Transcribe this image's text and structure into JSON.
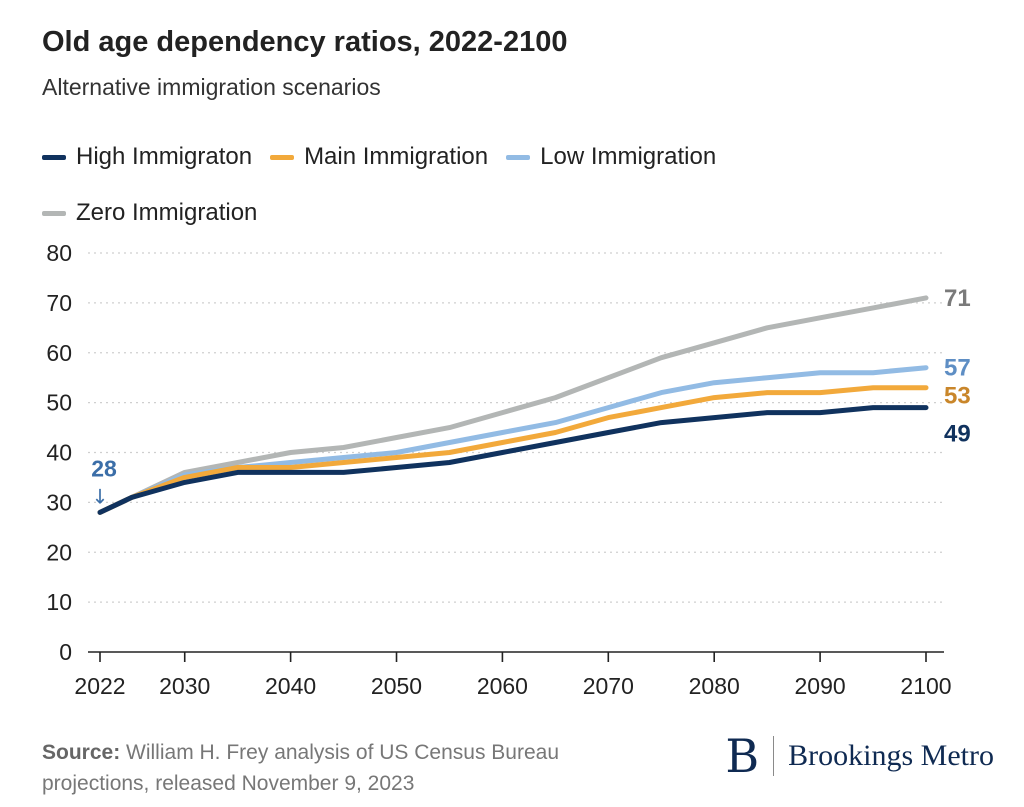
{
  "header": {
    "title": "Old age dependency ratios, 2022-2100",
    "subtitle": "Alternative immigration scenarios"
  },
  "chart_data": {
    "type": "line",
    "title": "Old age dependency ratios, 2022-2100",
    "subtitle": "Alternative immigration scenarios",
    "xlabel": "",
    "ylabel": "",
    "x": [
      2022,
      2025,
      2030,
      2035,
      2040,
      2045,
      2050,
      2055,
      2060,
      2065,
      2070,
      2075,
      2080,
      2085,
      2090,
      2095,
      2100
    ],
    "xlim": [
      2022,
      2100
    ],
    "ylim": [
      0,
      80
    ],
    "x_ticks": [
      "2022",
      "2030",
      "2040",
      "2050",
      "2060",
      "2070",
      "2080",
      "2090",
      "2100"
    ],
    "x_tick_values": [
      2022,
      2030,
      2040,
      2050,
      2060,
      2070,
      2080,
      2090,
      2100
    ],
    "y_ticks": [
      0,
      10,
      20,
      30,
      40,
      50,
      60,
      70,
      80
    ],
    "grid": "horizontal dotted",
    "legend_position": "top-left",
    "series": [
      {
        "name": "Zero Immigration",
        "color": "#b3b6b5",
        "values": [
          28,
          31,
          36,
          38,
          40,
          41,
          43,
          45,
          48,
          51,
          55,
          59,
          62,
          65,
          67,
          69,
          71
        ],
        "end_label": "71",
        "label_color": "#7a7a7a"
      },
      {
        "name": "Low Immigration",
        "color": "#92bbe4",
        "values": [
          28,
          31,
          35.5,
          37,
          38,
          39,
          40,
          42,
          44,
          46,
          49,
          52,
          54,
          55,
          56,
          56,
          57
        ],
        "end_label": "57",
        "label_color": "#5e8ec4"
      },
      {
        "name": "Main Immigration",
        "color": "#f2a93b",
        "values": [
          28,
          31,
          35,
          37,
          37,
          38,
          39,
          40,
          42,
          44,
          47,
          49,
          51,
          52,
          52,
          53,
          53
        ],
        "end_label": "53",
        "label_color": "#c9862a"
      },
      {
        "name": "High Immigraton",
        "color": "#10325e",
        "values": [
          28,
          31,
          34,
          36,
          36,
          36,
          37,
          38,
          40,
          42,
          44,
          46,
          47,
          48,
          48,
          49,
          49
        ],
        "end_label": "49",
        "label_color": "#10325e"
      }
    ],
    "legend_order": [
      "High Immigraton",
      "Main Immigration",
      "Low Immigration",
      "Zero Immigration"
    ],
    "annotations": [
      {
        "text": "28",
        "arrow": "↓",
        "x": 2022,
        "y": 28,
        "color": "#3b6ea8"
      }
    ]
  },
  "footer": {
    "source_label": "Source:",
    "source_text": "William H. Frey analysis of US Census Bureau projections, released November 9, 2023",
    "brand_mark": "B",
    "brand_name": "Brookings Metro"
  }
}
